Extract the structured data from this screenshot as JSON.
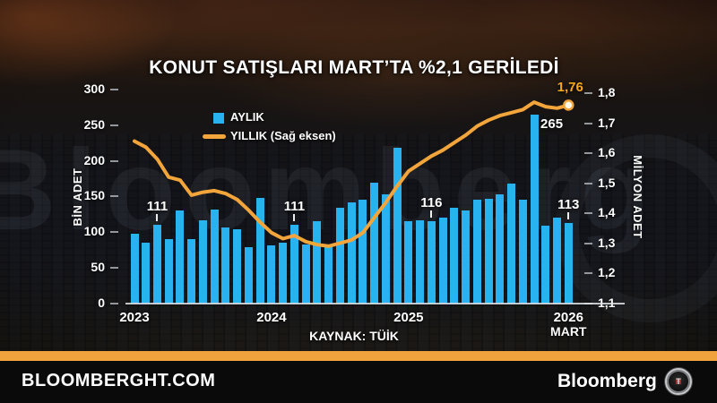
{
  "title": "KONUT SATIŞLARI MART’TA %2,1 GERİLEDİ",
  "legend": {
    "monthly_label": "AYLIK",
    "yearly_label": "YILLIK (Sağ eksen)"
  },
  "source": "KAYNAK: TÜİK",
  "watermark": "Bloomberg",
  "footer": {
    "site": "BLOOMBERGHT.COM",
    "brand": "Bloomberg",
    "logo_h": "H",
    "logo_t": "T"
  },
  "colors": {
    "bar": "#29B2F0",
    "line": "#F2A53B",
    "accent_text": "#F5A81C",
    "footer_strip": "#F0A23C",
    "text": "#FFFFFF"
  },
  "chart_data": {
    "type": "bar+line combo",
    "grid": false,
    "legend_position": "top-left-inside",
    "months": [
      "2023-01",
      "2023-02",
      "2023-03",
      "2023-04",
      "2023-05",
      "2023-06",
      "2023-07",
      "2023-08",
      "2023-09",
      "2023-10",
      "2023-11",
      "2023-12",
      "2024-01",
      "2024-02",
      "2024-03",
      "2024-04",
      "2024-05",
      "2024-06",
      "2024-07",
      "2024-08",
      "2024-09",
      "2024-10",
      "2024-11",
      "2024-12",
      "2025-01",
      "2025-02",
      "2025-03",
      "2025-04",
      "2025-05",
      "2025-06",
      "2025-07",
      "2025-08",
      "2025-09",
      "2025-10",
      "2025-11",
      "2025-12",
      "2026-01",
      "2026-02",
      "2026-03"
    ],
    "series": [
      {
        "name": "AYLIK",
        "type": "bar",
        "axis": "left",
        "unit": "bin adet",
        "values": [
          98,
          85,
          111,
          90,
          130,
          90,
          117,
          132,
          107,
          104,
          79,
          148,
          81,
          85,
          111,
          83,
          115,
          83,
          134,
          142,
          146,
          170,
          153,
          218,
          115,
          117,
          116,
          121,
          134,
          130,
          145,
          147,
          153,
          168,
          145,
          265,
          109,
          121,
          113
        ]
      },
      {
        "name": "YILLIK (Sağ eksen)",
        "type": "line",
        "axis": "right",
        "unit": "milyon adet",
        "values": [
          1.64,
          1.62,
          1.58,
          1.52,
          1.51,
          1.46,
          1.47,
          1.475,
          1.465,
          1.445,
          1.41,
          1.37,
          1.335,
          1.315,
          1.325,
          1.305,
          1.295,
          1.29,
          1.3,
          1.31,
          1.335,
          1.385,
          1.435,
          1.49,
          1.54,
          1.565,
          1.59,
          1.61,
          1.635,
          1.66,
          1.69,
          1.71,
          1.725,
          1.735,
          1.745,
          1.77,
          1.755,
          1.75,
          1.76
        ]
      }
    ],
    "left_axis": {
      "label": "BİN ADET",
      "min": 0,
      "max": 300,
      "tick_values": [
        0,
        50,
        100,
        150,
        200,
        250,
        300
      ],
      "tick_labels": [
        "0",
        "50",
        "100",
        "150",
        "200",
        "250",
        "300"
      ]
    },
    "right_axis": {
      "label": "MİLYON ADET",
      "min": 1.1,
      "max": 1.8,
      "tick_values": [
        1.1,
        1.2,
        1.3,
        1.4,
        1.5,
        1.6,
        1.7,
        1.8
      ],
      "tick_labels": [
        "1,1",
        "1,2",
        "1,3",
        "1,4",
        "1,5",
        "1,6",
        "1,7",
        "1,8"
      ]
    },
    "x_axis": {
      "year_labels": [
        {
          "label": "2023",
          "month_index": 0
        },
        {
          "label": "2024",
          "month_index": 12
        },
        {
          "label": "2025",
          "month_index": 24
        },
        {
          "label": "2026",
          "month_index": 38,
          "sub_label": "MART"
        }
      ]
    },
    "callouts": [
      {
        "text": "111",
        "month_index": 2,
        "position": "above"
      },
      {
        "text": "111",
        "month_index": 14,
        "position": "above"
      },
      {
        "text": "116",
        "month_index": 26,
        "position": "above"
      },
      {
        "text": "265",
        "month_index": 35,
        "position": "right-of-bar"
      },
      {
        "text": "113",
        "month_index": 38,
        "position": "above"
      },
      {
        "text": "1,76",
        "attach": "line_end",
        "position": "above-right"
      }
    ]
  }
}
